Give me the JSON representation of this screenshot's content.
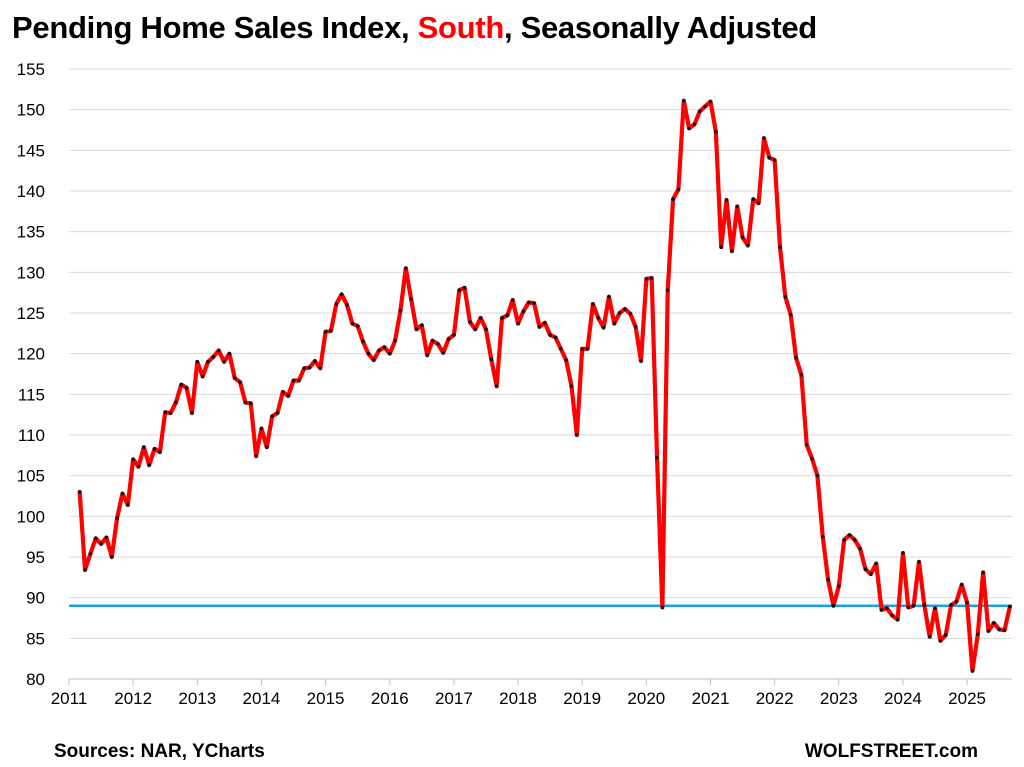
{
  "title": {
    "part1": "Pending Home Sales Index, ",
    "highlight": "South",
    "part2": ", Seasonally Adjusted"
  },
  "footer": {
    "source": "Sources: NAR, YCharts",
    "brand": "WOLFSTREET.com"
  },
  "colors": {
    "line": "#ff0000",
    "marker": "#111111",
    "reference_line": "#1ba1e2",
    "grid": "#d9d9d9",
    "title_highlight": "#ff0000"
  },
  "chart_data": {
    "type": "line",
    "title": "Pending Home Sales Index, South, Seasonally Adjusted",
    "xlabel": "",
    "ylabel": "",
    "ylim": [
      80,
      155
    ],
    "xlim": [
      2011,
      2025.7
    ],
    "grid": "horizontal",
    "yticks": [
      80,
      85,
      90,
      95,
      100,
      105,
      110,
      115,
      120,
      125,
      130,
      135,
      140,
      145,
      150,
      155
    ],
    "xticks": [
      2011,
      2012,
      2013,
      2014,
      2015,
      2016,
      2017,
      2018,
      2019,
      2020,
      2021,
      2022,
      2023,
      2024,
      2025
    ],
    "reference_line": {
      "y": 89,
      "color": "#1ba1e2"
    },
    "series": [
      {
        "start": "2011-03",
        "frequency": "monthly",
        "values": [
          103.0,
          93.4,
          95.4,
          97.3,
          96.6,
          97.4,
          95.0,
          99.8,
          102.8,
          101.4,
          107.0,
          106.1,
          108.5,
          106.3,
          108.3,
          107.9,
          112.8,
          112.7,
          114.0,
          116.2,
          115.8,
          112.7,
          119.0,
          117.2,
          119.0,
          119.6,
          120.4,
          119.0,
          120.0,
          117.0,
          116.5,
          114.0,
          113.9,
          107.4,
          110.8,
          108.5,
          112.3,
          112.7,
          115.3,
          114.8,
          116.7,
          116.7,
          118.2,
          118.3,
          119.1,
          118.2,
          122.7,
          122.8,
          126.1,
          127.3,
          126.0,
          123.7,
          123.4,
          121.5,
          120.0,
          119.2,
          120.4,
          120.8,
          120.0,
          121.6,
          125.3,
          130.5,
          126.7,
          123.0,
          123.5,
          119.8,
          121.6,
          121.2,
          120.1,
          121.8,
          122.3,
          127.8,
          128.1,
          123.9,
          123.0,
          124.4,
          123.0,
          119.3,
          116.0,
          124.4,
          124.7,
          126.6,
          123.7,
          125.2,
          126.3,
          126.2,
          123.3,
          123.8,
          122.3,
          122.0,
          120.6,
          119.2,
          116.0,
          110.0,
          120.6,
          120.6,
          126.1,
          124.4,
          123.2,
          127.0,
          123.7,
          125.0,
          125.5,
          124.9,
          123.3,
          119.1,
          129.2,
          129.3,
          107.2,
          88.8,
          127.8,
          139.0,
          140.2,
          151.1,
          147.7,
          148.2,
          149.8,
          150.4,
          151.0,
          147.3,
          133.1,
          138.9,
          132.6,
          138.1,
          134.3,
          133.3,
          139.0,
          138.5,
          146.5,
          144.1,
          143.8,
          133.1,
          127.0,
          124.8,
          119.5,
          117.4,
          108.8,
          107.1,
          105.0,
          97.5,
          92.2,
          89.0,
          91.4,
          97.1,
          97.7,
          97.1,
          96.0,
          93.5,
          92.9,
          94.2,
          88.5,
          88.7,
          87.8,
          87.3,
          95.5,
          88.8,
          89.0,
          94.4,
          89.1,
          85.2,
          88.7,
          84.7,
          85.4,
          89.1,
          89.5,
          91.6,
          89.4,
          81.0,
          85.5,
          93.1,
          85.9,
          86.9,
          86.1,
          86.0,
          88.9
        ]
      }
    ]
  }
}
